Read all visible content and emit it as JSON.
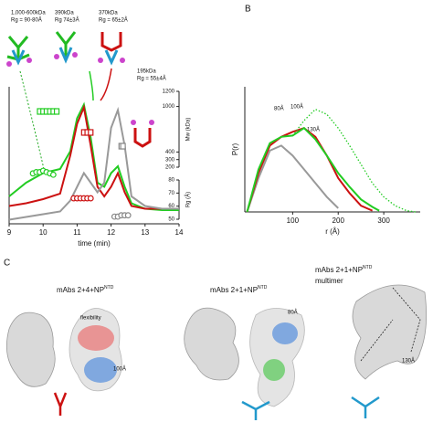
{
  "chart_data": [
    {
      "type": "line",
      "x_label": "time (min)",
      "xlim": [
        9,
        14
      ],
      "xticks": [
        9,
        10,
        11,
        12,
        13,
        14
      ],
      "ylim": [
        0,
        1
      ],
      "y2_label": "Mw (kDa)",
      "y2lim": [
        200,
        1200
      ],
      "y2ticks": [
        1200,
        1000,
        400,
        300,
        200
      ],
      "y3_label": "Rg (Å)",
      "y3lim": [
        50,
        80
      ],
      "y3ticks": [
        80,
        70,
        60,
        50
      ],
      "series": [
        {
          "color": "#22cc22",
          "x": [
            9,
            9.5,
            10,
            10.5,
            10.8,
            11,
            11.2,
            11.4,
            11.6,
            11.8,
            12,
            12.2,
            12.4,
            12.6,
            13,
            13.5,
            14
          ],
          "values": [
            0.2,
            0.3,
            0.37,
            0.4,
            0.53,
            0.77,
            0.87,
            0.63,
            0.3,
            0.27,
            0.37,
            0.42,
            0.27,
            0.15,
            0.11,
            0.1,
            0.1
          ]
        },
        {
          "color": "#cc1111",
          "x": [
            9,
            9.5,
            10,
            10.5,
            10.8,
            11,
            11.2,
            11.4,
            11.6,
            11.8,
            12,
            12.2,
            12.4,
            12.6,
            13,
            13.5,
            14
          ],
          "values": [
            0.13,
            0.15,
            0.18,
            0.22,
            0.5,
            0.73,
            0.85,
            0.57,
            0.27,
            0.2,
            0.27,
            0.37,
            0.23,
            0.13,
            0.11,
            0.11,
            0.11
          ]
        },
        {
          "color": "#999999",
          "x": [
            9,
            9.5,
            10,
            10.5,
            10.8,
            11,
            11.2,
            11.4,
            11.6,
            11.8,
            12,
            12.2,
            12.4,
            12.6,
            13,
            13.5,
            14
          ],
          "values": [
            0.03,
            0.05,
            0.07,
            0.09,
            0.17,
            0.27,
            0.37,
            0.3,
            0.23,
            0.3,
            0.7,
            0.83,
            0.57,
            0.2,
            0.13,
            0.11,
            0.11
          ]
        },
        {
          "color": "#22cc22",
          "axis": "y3",
          "marker": "circle",
          "x": [
            9.7,
            9.8,
            9.9,
            10,
            10.1,
            10.2,
            10.3
          ],
          "values": [
            85,
            86,
            86,
            87,
            86,
            85,
            84
          ]
        },
        {
          "color": "#cc1111",
          "axis": "y3",
          "marker": "circle",
          "x": [
            10.9,
            11,
            11.1,
            11.2,
            11.3,
            11.4
          ],
          "values": [
            66,
            66,
            66,
            66,
            66,
            66
          ]
        },
        {
          "color": "#888888",
          "axis": "y3",
          "marker": "circle",
          "x": [
            12.1,
            12.2,
            12.3,
            12.4,
            12.5
          ],
          "values": [
            52,
            52,
            53,
            53,
            53
          ]
        },
        {
          "color": "#22cc22",
          "axis": "y2",
          "marker": "square",
          "x": [
            9.9,
            10,
            10.1,
            10.2,
            10.3,
            10.4
          ],
          "values": [
            935,
            935,
            935,
            935,
            935,
            935
          ]
        },
        {
          "color": "#cc1111",
          "axis": "y2",
          "marker": "square",
          "x": [
            11.2,
            11.3,
            11.4
          ],
          "values": [
            658,
            658,
            658
          ]
        },
        {
          "color": "#888888",
          "axis": "y2",
          "marker": "square",
          "x": [
            12.3,
            12.35
          ],
          "values": [
            477,
            477
          ]
        }
      ],
      "annotations": [
        "1,000-600kDa",
        "Rg = 90-80Å",
        "390kDa",
        "Rg 74±3Å",
        "370kDa",
        "Rg = 65±2Å",
        "195kDa",
        "Rg = 55±4Å"
      ]
    },
    {
      "type": "line",
      "panel": "B",
      "x_label": "r (Å)",
      "y_label": "P(r)",
      "xlim": [
        -5,
        380
      ],
      "xticks": [
        100,
        200,
        300
      ],
      "ylim": [
        0,
        1
      ],
      "series": [
        {
          "color": "#999999",
          "x": [
            0,
            25,
            50,
            75,
            100,
            125,
            150,
            175,
            200
          ],
          "values": [
            0,
            0.27,
            0.49,
            0.53,
            0.45,
            0.34,
            0.23,
            0.12,
            0.03
          ]
        },
        {
          "color": "#cc1111",
          "x": [
            0,
            25,
            50,
            75,
            100,
            125,
            150,
            175,
            200,
            225,
            250,
            275
          ],
          "values": [
            0,
            0.31,
            0.53,
            0.6,
            0.64,
            0.67,
            0.6,
            0.45,
            0.27,
            0.15,
            0.05,
            0.01
          ]
        },
        {
          "color": "#22cc22",
          "x": [
            0,
            25,
            50,
            75,
            100,
            125,
            150,
            175,
            200,
            225,
            250,
            275,
            290
          ],
          "values": [
            0,
            0.34,
            0.55,
            0.6,
            0.61,
            0.67,
            0.58,
            0.45,
            0.31,
            0.2,
            0.1,
            0.04,
            0.01
          ]
        },
        {
          "color": "#22cc22",
          "style": "dotted",
          "x": [
            100,
            125,
            150,
            175,
            200,
            225,
            250,
            275,
            300,
            325,
            350,
            370
          ],
          "values": [
            0.61,
            0.73,
            0.82,
            0.78,
            0.67,
            0.53,
            0.38,
            0.23,
            0.12,
            0.05,
            0.01,
            0
          ]
        }
      ],
      "annotations": [
        "80Å",
        "100Å",
        "130Å"
      ]
    }
  ],
  "panel_c": {
    "label": "C",
    "titles": [
      {
        "text": "mAbs 2+4+NP",
        "sup": "NTD"
      },
      {
        "text": "mAbs 2+1+NP",
        "sup": "NTD"
      },
      {
        "text": "mAbs 2+1+NP",
        "sup": "NTD",
        "line2": "multimer"
      }
    ],
    "notes": [
      "flexibility",
      "100Å",
      "80Å",
      "130Å"
    ]
  }
}
